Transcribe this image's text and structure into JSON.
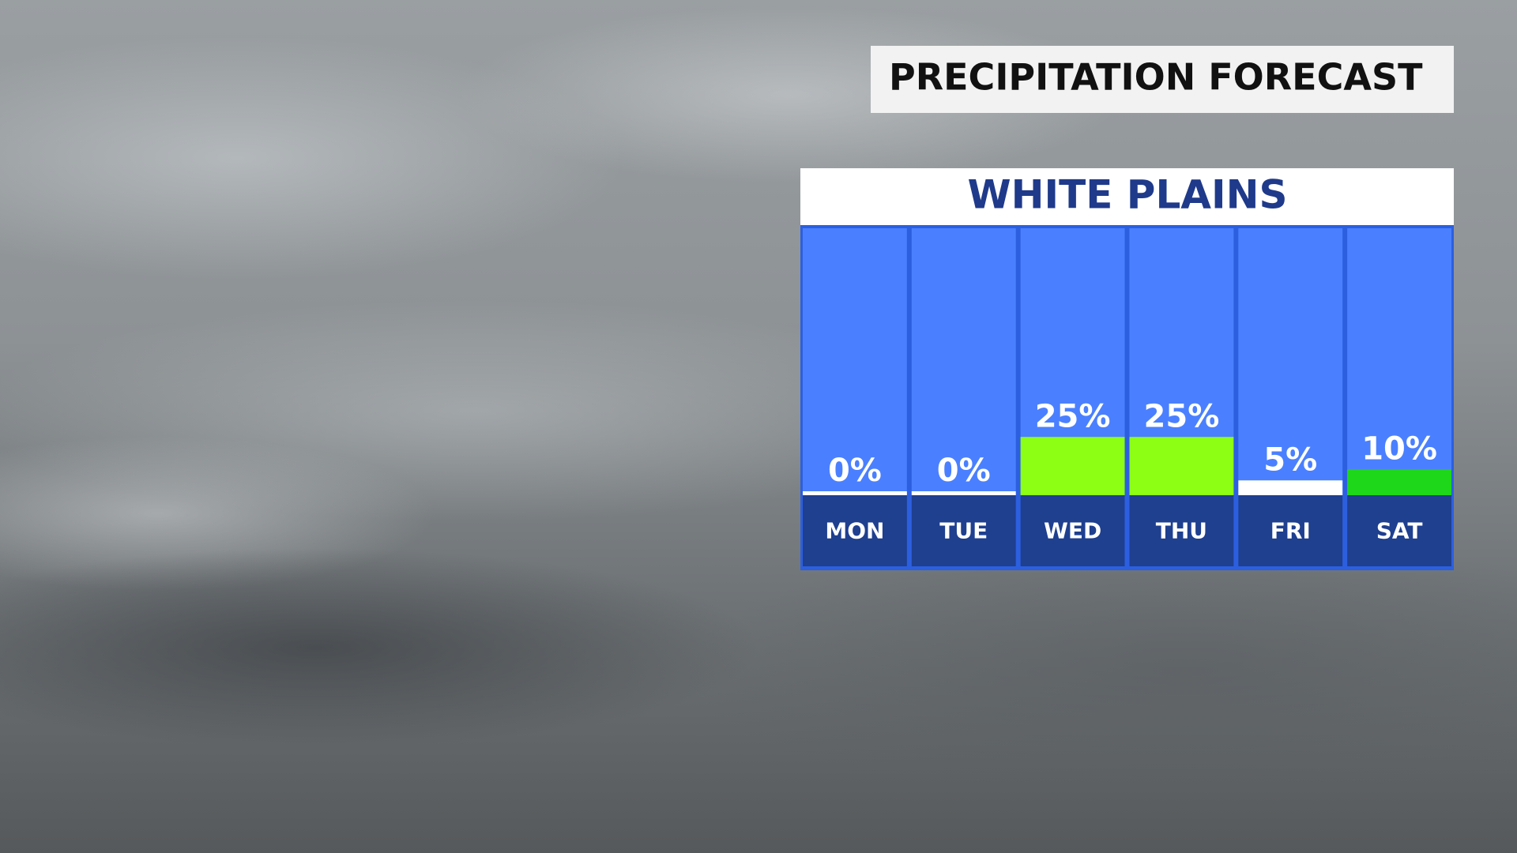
{
  "chart_data": {
    "type": "bar",
    "title": "PRECIPITATION FORECAST",
    "subtitle": "WHITE PLAINS",
    "categories": [
      "MON",
      "TUE",
      "WED",
      "THU",
      "FRI",
      "SAT"
    ],
    "values": [
      0,
      0,
      25,
      25,
      5,
      10
    ],
    "value_labels": [
      "0%",
      "0%",
      "25%",
      "25%",
      "5%",
      "10%"
    ],
    "colors": [
      "#ffffff",
      "#ffffff",
      "#8cff14",
      "#8cff14",
      "#ffffff",
      "#1ed61a"
    ]
  }
}
